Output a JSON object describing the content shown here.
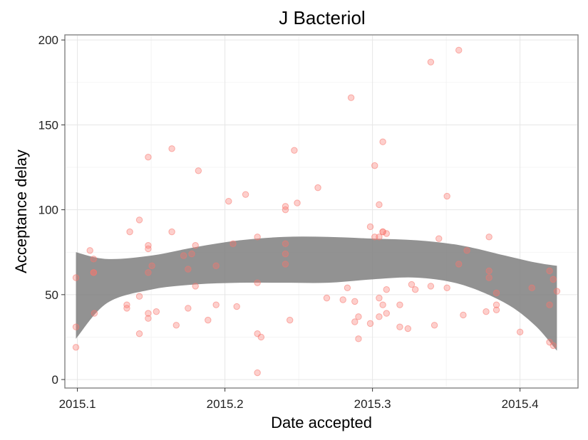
{
  "chart_data": {
    "type": "scatter",
    "title": "J Bacteriol",
    "xlabel": "Date accepted",
    "ylabel": "Acceptance delay",
    "xlim": [
      2015.0915,
      2015.4393
    ],
    "ylim": [
      -5,
      203
    ],
    "xticks": [
      2015.1,
      2015.2,
      2015.3,
      2015.4
    ],
    "xtick_labels": [
      "2015.1",
      "2015.2",
      "2015.3",
      "2015.4"
    ],
    "yticks": [
      0,
      50,
      100,
      150,
      200
    ],
    "ytick_labels": [
      "0",
      "50",
      "100",
      "150",
      "200"
    ],
    "grid": true,
    "point_color": "#f8766d",
    "ribbon_color": "#7f7f7f",
    "points": [
      [
        2015.099,
        19
      ],
      [
        2015.099,
        31
      ],
      [
        2015.099,
        60
      ],
      [
        2015.1085,
        76
      ],
      [
        2015.111,
        71
      ],
      [
        2015.111,
        63
      ],
      [
        2015.111,
        63
      ],
      [
        2015.1115,
        39
      ],
      [
        2015.1335,
        44
      ],
      [
        2015.1335,
        42
      ],
      [
        2015.1355,
        87
      ],
      [
        2015.142,
        94
      ],
      [
        2015.142,
        49
      ],
      [
        2015.142,
        27
      ],
      [
        2015.148,
        131
      ],
      [
        2015.148,
        79
      ],
      [
        2015.148,
        77
      ],
      [
        2015.148,
        63
      ],
      [
        2015.148,
        39
      ],
      [
        2015.148,
        36
      ],
      [
        2015.1505,
        67
      ],
      [
        2015.1535,
        40
      ],
      [
        2015.164,
        136
      ],
      [
        2015.164,
        87
      ],
      [
        2015.167,
        32
      ],
      [
        2015.172,
        73
      ],
      [
        2015.175,
        65
      ],
      [
        2015.175,
        42
      ],
      [
        2015.1775,
        74
      ],
      [
        2015.18,
        79
      ],
      [
        2015.18,
        55
      ],
      [
        2015.182,
        123
      ],
      [
        2015.1885,
        35
      ],
      [
        2015.194,
        67
      ],
      [
        2015.194,
        44
      ],
      [
        2015.2025,
        105
      ],
      [
        2015.2055,
        80
      ],
      [
        2015.208,
        43
      ],
      [
        2015.214,
        109
      ],
      [
        2015.222,
        84
      ],
      [
        2015.222,
        57
      ],
      [
        2015.222,
        27
      ],
      [
        2015.222,
        4
      ],
      [
        2015.2245,
        25
      ],
      [
        2015.241,
        102
      ],
      [
        2015.241,
        100
      ],
      [
        2015.241,
        80
      ],
      [
        2015.241,
        74
      ],
      [
        2015.241,
        68
      ],
      [
        2015.244,
        35
      ],
      [
        2015.247,
        135
      ],
      [
        2015.249,
        104
      ],
      [
        2015.263,
        113
      ],
      [
        2015.269,
        48
      ],
      [
        2015.28,
        47
      ],
      [
        2015.283,
        54
      ],
      [
        2015.2855,
        166
      ],
      [
        2015.288,
        34
      ],
      [
        2015.288,
        46
      ],
      [
        2015.2905,
        37
      ],
      [
        2015.2905,
        24
      ],
      [
        2015.2985,
        90
      ],
      [
        2015.2985,
        33
      ],
      [
        2015.3015,
        126
      ],
      [
        2015.3015,
        84
      ],
      [
        2015.3045,
        103
      ],
      [
        2015.3045,
        84
      ],
      [
        2015.3045,
        48
      ],
      [
        2015.3045,
        37
      ],
      [
        2015.307,
        140
      ],
      [
        2015.307,
        87
      ],
      [
        2015.307,
        87
      ],
      [
        2015.307,
        44
      ],
      [
        2015.3095,
        86
      ],
      [
        2015.3095,
        53
      ],
      [
        2015.3095,
        39
      ],
      [
        2015.3185,
        44
      ],
      [
        2015.3185,
        31
      ],
      [
        2015.324,
        30
      ],
      [
        2015.3265,
        56
      ],
      [
        2015.329,
        53
      ],
      [
        2015.3395,
        187
      ],
      [
        2015.3395,
        55
      ],
      [
        2015.342,
        32
      ],
      [
        2015.345,
        83
      ],
      [
        2015.3505,
        108
      ],
      [
        2015.3505,
        54
      ],
      [
        2015.3585,
        194
      ],
      [
        2015.3585,
        68
      ],
      [
        2015.3615,
        38
      ],
      [
        2015.364,
        76
      ],
      [
        2015.377,
        40
      ],
      [
        2015.379,
        84
      ],
      [
        2015.379,
        64
      ],
      [
        2015.379,
        60
      ],
      [
        2015.384,
        51
      ],
      [
        2015.384,
        44
      ],
      [
        2015.384,
        41
      ],
      [
        2015.4,
        28
      ],
      [
        2015.408,
        54
      ],
      [
        2015.42,
        64
      ],
      [
        2015.42,
        44
      ],
      [
        2015.42,
        22
      ],
      [
        2015.4225,
        59
      ],
      [
        2015.4225,
        20
      ],
      [
        2015.425,
        52
      ]
    ],
    "smooth_band": {
      "x": [
        2015.099,
        2015.12,
        2015.15,
        2015.18,
        2015.21,
        2015.24,
        2015.27,
        2015.3,
        2015.33,
        2015.36,
        2015.39,
        2015.41,
        2015.425
      ],
      "upper": [
        75,
        71,
        73,
        78,
        82,
        84,
        84,
        83,
        82,
        79,
        73,
        69,
        67
      ],
      "lower": [
        24,
        45,
        53,
        56,
        57,
        57,
        57,
        59,
        60,
        56,
        45,
        32,
        17
      ]
    }
  }
}
